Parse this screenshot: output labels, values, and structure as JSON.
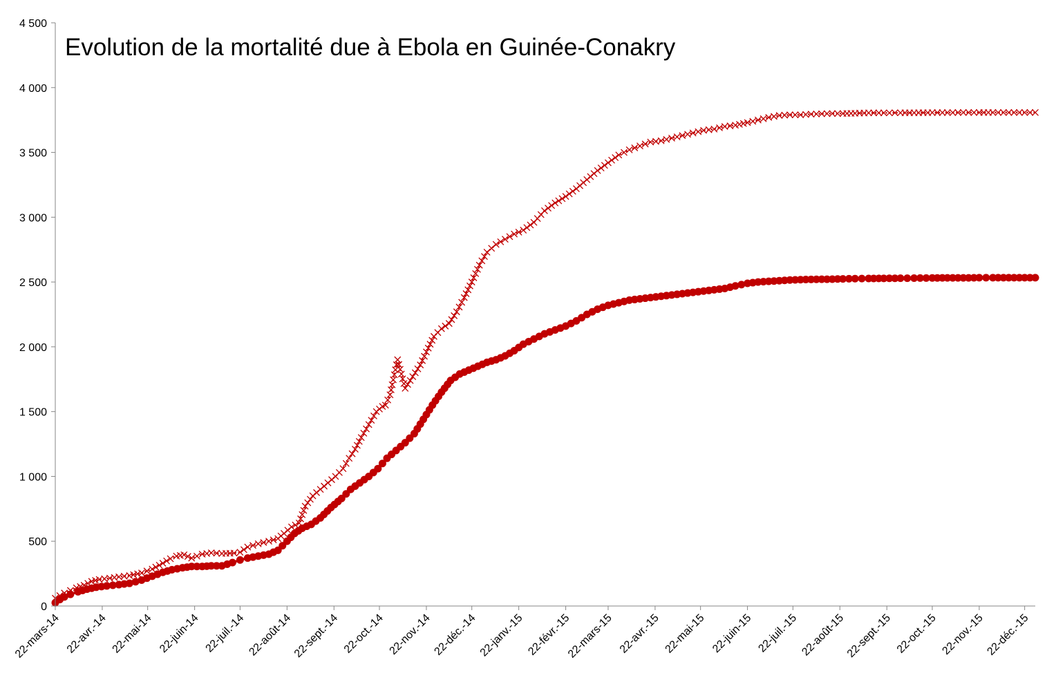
{
  "chart_data": {
    "type": "line",
    "title": "Evolution de la mortalité due à Ebola en Guinée-Conakry",
    "xlabel": "",
    "ylabel": "",
    "ylim": [
      0,
      4500
    ],
    "xlim": [
      "2014-03-22",
      "2015-12-29"
    ],
    "x_tick_labels": [
      "22-mars-14",
      "22-avr.-14",
      "22-mai-14",
      "22-juin-14",
      "22-juil.-14",
      "22-août-14",
      "22-sept.-14",
      "22-oct.-14",
      "22-nov.-14",
      "22-déc.-14",
      "22-janv.-15",
      "22-févr.-15",
      "22-mars-15",
      "22-avr.-15",
      "22-mai-15",
      "22-juin-15",
      "22-juil.-15",
      "22-août-15",
      "22-sept.-15",
      "22-oct.-15",
      "22-nov.-15",
      "22-déc.-15"
    ],
    "x_tick_dates": [
      "2014-03-22",
      "2014-04-22",
      "2014-05-22",
      "2014-06-22",
      "2014-07-22",
      "2014-08-22",
      "2014-09-22",
      "2014-10-22",
      "2014-11-22",
      "2014-12-22",
      "2015-01-22",
      "2015-02-22",
      "2015-03-22",
      "2015-04-22",
      "2015-05-22",
      "2015-06-22",
      "2015-07-22",
      "2015-08-22",
      "2015-09-22",
      "2015-10-22",
      "2015-11-22",
      "2015-12-22"
    ],
    "y_ticks": [
      0,
      500,
      1000,
      1500,
      2000,
      2500,
      3000,
      3500,
      4000,
      4500
    ],
    "y_tick_labels": [
      "0",
      "500",
      "1 000",
      "1 500",
      "2 000",
      "2 500",
      "3 000",
      "3 500",
      "4 000",
      "4 500"
    ],
    "grid": false,
    "legend": "none",
    "colors": {
      "series": "#c00000",
      "axis": "#868686"
    },
    "series": [
      {
        "marker": "x",
        "line_style": "dotted",
        "x": [
          "2014-03-22",
          "2014-03-25",
          "2014-03-28",
          "2014-04-01",
          "2014-04-05",
          "2014-04-10",
          "2014-04-15",
          "2014-04-20",
          "2014-04-27",
          "2014-05-03",
          "2014-05-10",
          "2014-05-18",
          "2014-05-25",
          "2014-06-01",
          "2014-06-06",
          "2014-06-10",
          "2014-06-15",
          "2014-06-20",
          "2014-06-27",
          "2014-07-03",
          "2014-07-10",
          "2014-07-18",
          "2014-07-22",
          "2014-07-27",
          "2014-08-03",
          "2014-08-10",
          "2014-08-16",
          "2014-08-20",
          "2014-08-25",
          "2014-08-30",
          "2014-09-03",
          "2014-09-08",
          "2014-09-13",
          "2014-09-18",
          "2014-09-23",
          "2014-09-28",
          "2014-10-02",
          "2014-10-06",
          "2014-10-10",
          "2014-10-15",
          "2014-10-20",
          "2014-10-24",
          "2014-10-26",
          "2014-10-29",
          "2014-11-03",
          "2014-11-08",
          "2014-11-13",
          "2014-11-18",
          "2014-11-22",
          "2014-11-27",
          "2014-12-02",
          "2014-12-07",
          "2014-12-12",
          "2014-12-17",
          "2014-12-22",
          "2014-12-27",
          "2015-01-01",
          "2015-01-07",
          "2015-01-13",
          "2015-01-19",
          "2015-01-25",
          "2015-02-01",
          "2015-02-08",
          "2015-02-15",
          "2015-02-22",
          "2015-03-01",
          "2015-03-08",
          "2015-03-15",
          "2015-03-22",
          "2015-03-29",
          "2015-04-05",
          "2015-04-12",
          "2015-04-19",
          "2015-04-26",
          "2015-05-03",
          "2015-05-10",
          "2015-05-17",
          "2015-05-24",
          "2015-05-31",
          "2015-06-07",
          "2015-06-14",
          "2015-06-22",
          "2015-06-29",
          "2015-07-06",
          "2015-07-13",
          "2015-07-20",
          "2015-07-27",
          "2015-08-03",
          "2015-08-10",
          "2015-08-17",
          "2015-08-24",
          "2015-09-01",
          "2015-09-10",
          "2015-09-20",
          "2015-10-01",
          "2015-10-10",
          "2015-10-22",
          "2015-11-01",
          "2015-11-15",
          "2015-11-22",
          "2015-12-01",
          "2015-12-15",
          "2015-12-29"
        ],
        "y": [
          60,
          80,
          100,
          120,
          140,
          160,
          190,
          205,
          215,
          225,
          235,
          255,
          285,
          330,
          365,
          385,
          395,
          370,
          400,
          410,
          405,
          408,
          415,
          455,
          480,
          500,
          520,
          560,
          610,
          640,
          770,
          850,
          900,
          950,
          1000,
          1060,
          1140,
          1210,
          1300,
          1400,
          1500,
          1540,
          1550,
          1630,
          1900,
          1680,
          1770,
          1860,
          1960,
          2080,
          2140,
          2180,
          2270,
          2380,
          2500,
          2630,
          2730,
          2790,
          2830,
          2870,
          2900,
          2960,
          3050,
          3110,
          3160,
          3220,
          3290,
          3360,
          3420,
          3480,
          3520,
          3550,
          3580,
          3590,
          3610,
          3630,
          3650,
          3670,
          3680,
          3700,
          3710,
          3730,
          3750,
          3770,
          3785,
          3790,
          3790,
          3795,
          3798,
          3800,
          3800,
          3802,
          3805,
          3805,
          3806,
          3806,
          3807,
          3807,
          3808,
          3808,
          3808,
          3808,
          3808
        ]
      },
      {
        "marker": "circle",
        "line_style": "solid",
        "x": [
          "2014-03-22",
          "2014-03-25",
          "2014-03-28",
          "2014-04-01",
          "2014-04-06",
          "2014-04-12",
          "2014-04-18",
          "2014-04-25",
          "2014-05-03",
          "2014-05-10",
          "2014-05-18",
          "2014-05-25",
          "2014-06-01",
          "2014-06-07",
          "2014-06-14",
          "2014-06-20",
          "2014-06-27",
          "2014-07-03",
          "2014-07-10",
          "2014-07-17",
          "2014-07-22",
          "2014-07-27",
          "2014-08-03",
          "2014-08-10",
          "2014-08-16",
          "2014-08-22",
          "2014-08-27",
          "2014-09-01",
          "2014-09-07",
          "2014-09-13",
          "2014-09-20",
          "2014-09-27",
          "2014-10-03",
          "2014-10-09",
          "2014-10-15",
          "2014-10-21",
          "2014-10-27",
          "2014-11-02",
          "2014-11-08",
          "2014-11-14",
          "2014-11-20",
          "2014-11-26",
          "2014-12-02",
          "2014-12-08",
          "2014-12-14",
          "2014-12-20",
          "2014-12-26",
          "2015-01-01",
          "2015-01-07",
          "2015-01-13",
          "2015-01-19",
          "2015-01-25",
          "2015-02-01",
          "2015-02-08",
          "2015-02-15",
          "2015-02-22",
          "2015-03-01",
          "2015-03-08",
          "2015-03-15",
          "2015-03-22",
          "2015-03-29",
          "2015-04-05",
          "2015-04-12",
          "2015-04-19",
          "2015-04-26",
          "2015-05-03",
          "2015-05-10",
          "2015-05-17",
          "2015-05-24",
          "2015-05-31",
          "2015-06-07",
          "2015-06-14",
          "2015-06-22",
          "2015-06-29",
          "2015-07-06",
          "2015-07-13",
          "2015-07-20",
          "2015-07-27",
          "2015-08-03",
          "2015-08-10",
          "2015-08-17",
          "2015-08-24",
          "2015-09-01",
          "2015-09-10",
          "2015-09-20",
          "2015-10-01",
          "2015-10-10",
          "2015-10-22",
          "2015-11-01",
          "2015-11-15",
          "2015-11-22",
          "2015-12-01",
          "2015-12-15",
          "2015-12-29"
        ],
        "y": [
          25,
          50,
          70,
          90,
          110,
          130,
          145,
          155,
          165,
          175,
          200,
          230,
          260,
          280,
          295,
          305,
          305,
          310,
          310,
          335,
          355,
          370,
          385,
          400,
          430,
          500,
          560,
          600,
          630,
          680,
          760,
          830,
          900,
          950,
          1000,
          1060,
          1140,
          1200,
          1260,
          1330,
          1440,
          1550,
          1650,
          1740,
          1790,
          1820,
          1850,
          1880,
          1900,
          1930,
          1970,
          2020,
          2060,
          2100,
          2130,
          2160,
          2200,
          2250,
          2290,
          2320,
          2340,
          2360,
          2370,
          2380,
          2390,
          2400,
          2410,
          2420,
          2430,
          2440,
          2450,
          2470,
          2490,
          2500,
          2505,
          2510,
          2515,
          2518,
          2520,
          2521,
          2522,
          2524,
          2526,
          2527,
          2528,
          2529,
          2530,
          2531,
          2532,
          2532,
          2533,
          2533,
          2533,
          2533
        ]
      }
    ]
  }
}
